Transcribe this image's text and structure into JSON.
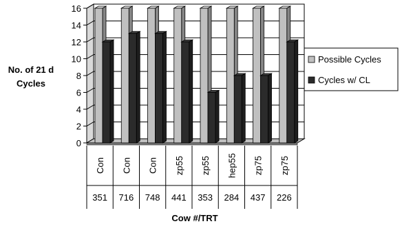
{
  "chart_data": {
    "type": "bar",
    "style": "3d-clustered-column",
    "categories": [
      {
        "trt": "Con",
        "cow": "351"
      },
      {
        "trt": "Con",
        "cow": "716"
      },
      {
        "trt": "Con",
        "cow": "748"
      },
      {
        "trt": "zp55",
        "cow": "441"
      },
      {
        "trt": "zp55",
        "cow": "353"
      },
      {
        "trt": "hep55",
        "cow": "284"
      },
      {
        "trt": "zp75",
        "cow": "437"
      },
      {
        "trt": "zp75",
        "cow": "226"
      }
    ],
    "series": [
      {
        "name": "Possible Cycles",
        "color": "#c0c0c0",
        "values": [
          16,
          16,
          16,
          16,
          16,
          16,
          16,
          16
        ]
      },
      {
        "name": "Cycles w/ CL",
        "color": "#2b2b2b",
        "values": [
          12,
          13,
          13,
          12,
          6,
          8,
          8,
          12
        ]
      }
    ],
    "ylabel_lines": [
      "No. of 21 d",
      "Cycles"
    ],
    "xlabel": "Cow #/TRT",
    "ylim": [
      0,
      16
    ],
    "yticks": [
      0,
      2,
      4,
      6,
      8,
      10,
      12,
      14,
      16
    ],
    "grid": true,
    "legend_position": "right"
  }
}
